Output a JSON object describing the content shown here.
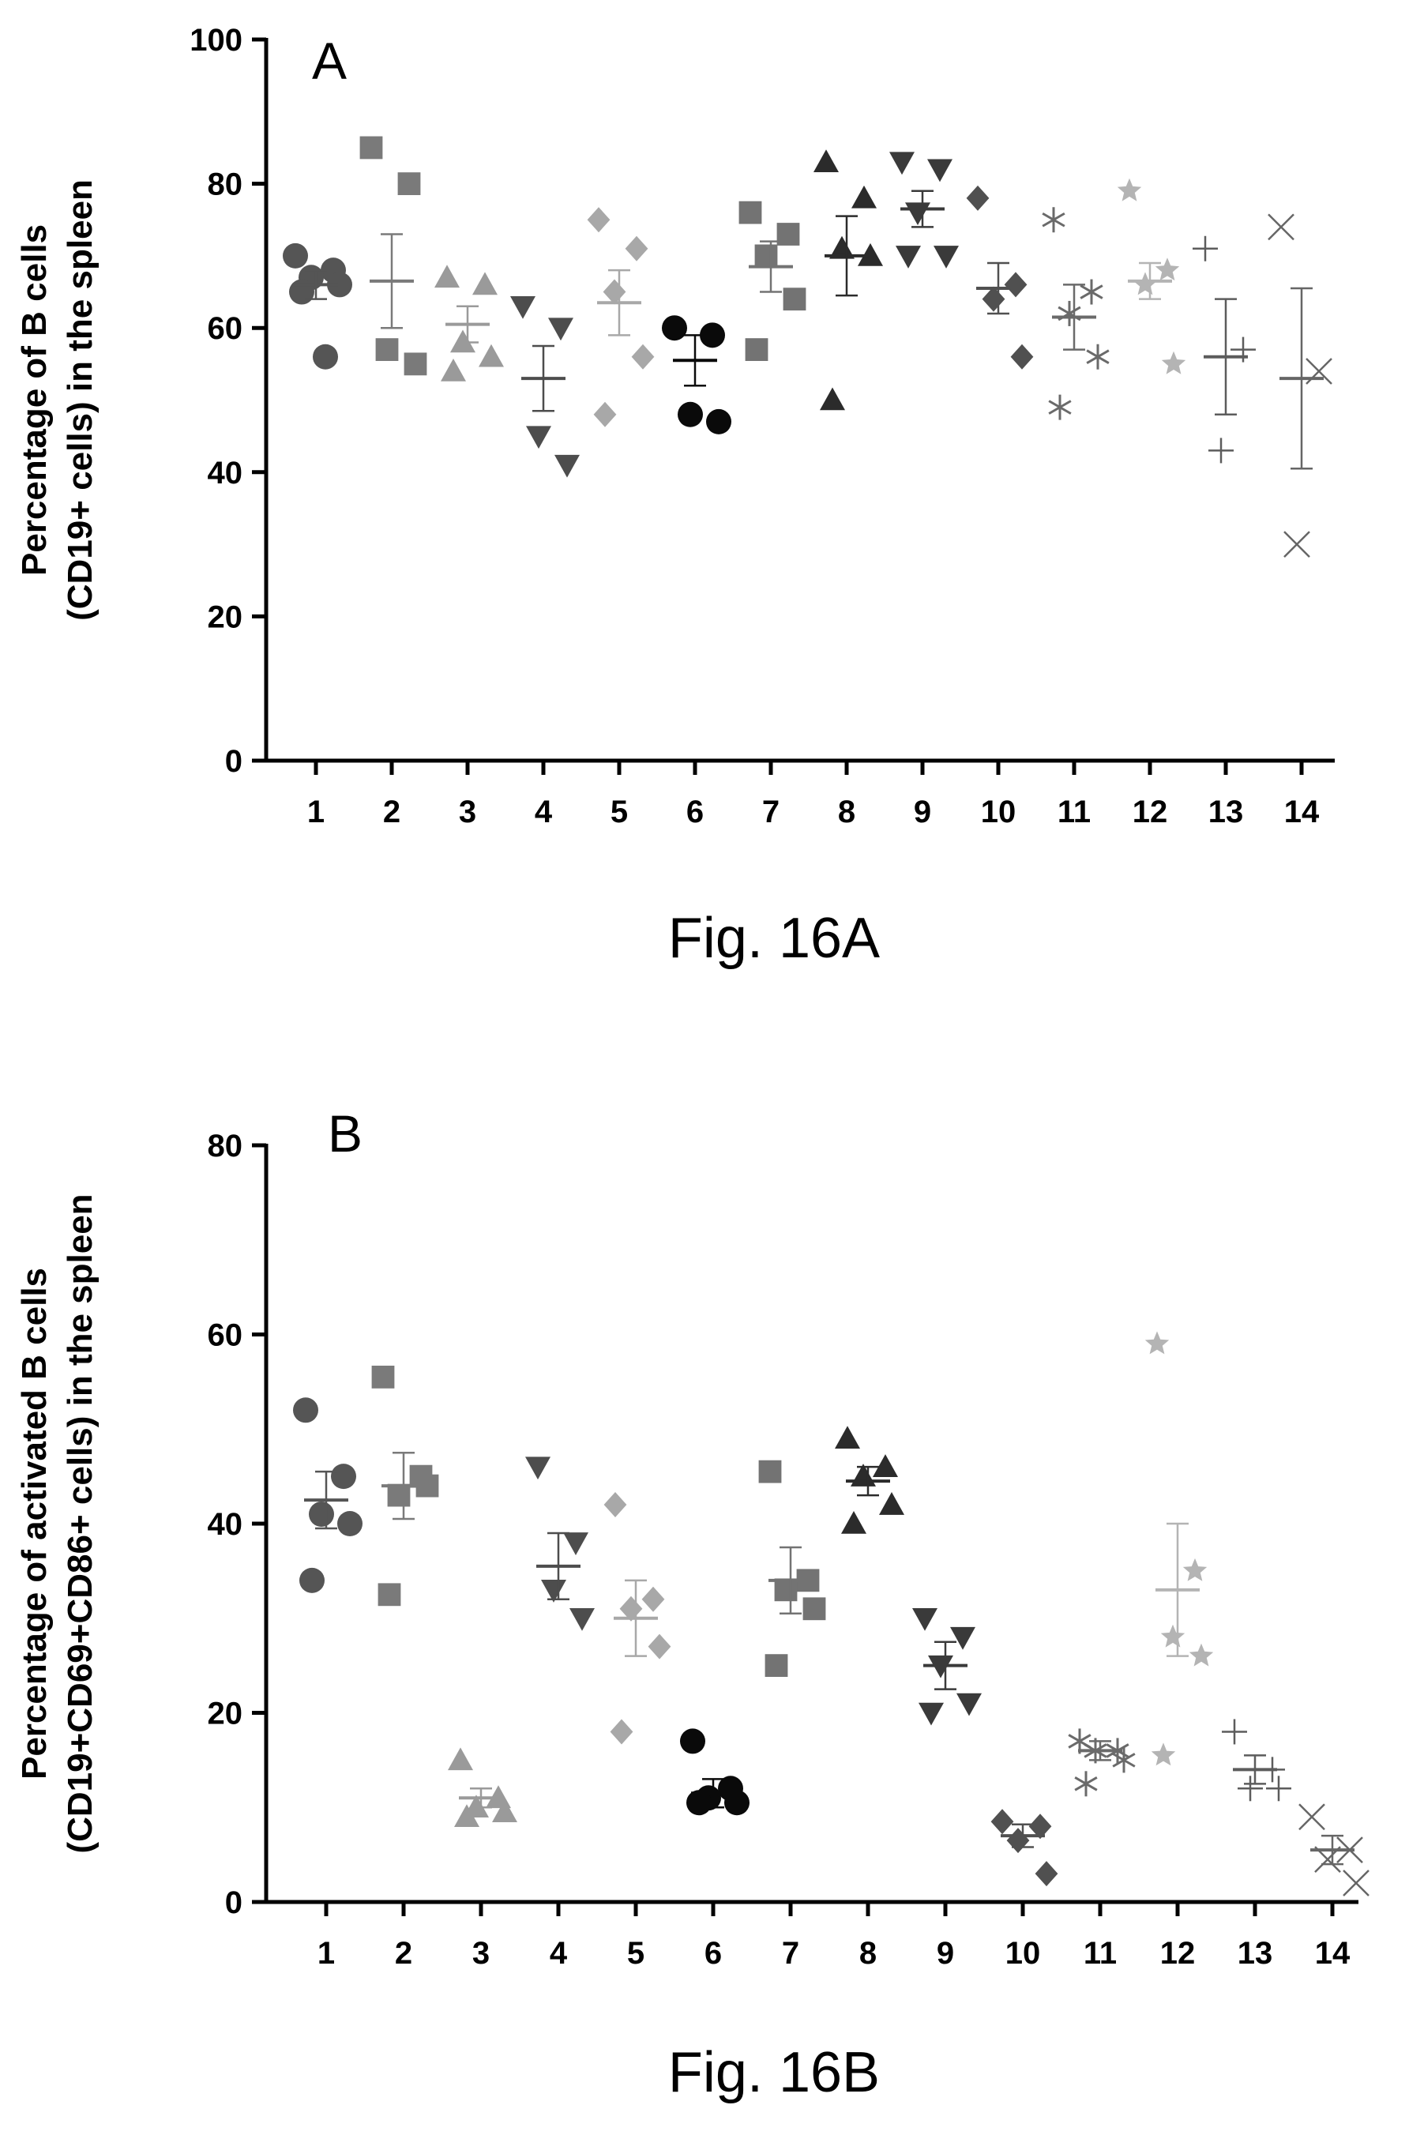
{
  "chart_data": [
    {
      "type": "scatter",
      "panel_label": "A",
      "caption": "Fig. 16A",
      "ylabel_lines": [
        "Percentage of B cells",
        "(CD19+ cells) in the spleen"
      ],
      "categories": [
        "1",
        "2",
        "3",
        "4",
        "5",
        "6",
        "7",
        "8",
        "9",
        "10",
        "11",
        "12",
        "13",
        "14"
      ],
      "ylim": [
        0,
        100
      ],
      "yticks": [
        "0",
        "20",
        "40",
        "60",
        "80",
        "100"
      ],
      "groups": [
        {
          "points": [
            70,
            68,
            67,
            66,
            65,
            56
          ],
          "mean": 66,
          "sem": 2
        },
        {
          "points": [
            85,
            80,
            57,
            55
          ],
          "mean": 66.5,
          "sem": 6.5
        },
        {
          "points": [
            67,
            66,
            58,
            56,
            54
          ],
          "mean": 60.5,
          "sem": 2.5
        },
        {
          "points": [
            63,
            60,
            45,
            41
          ],
          "mean": 53,
          "sem": 4.5
        },
        {
          "points": [
            75,
            71,
            65,
            56,
            48
          ],
          "mean": 63.5,
          "sem": 4.5
        },
        {
          "points": [
            60,
            59,
            48,
            47
          ],
          "mean": 55.5,
          "sem": 3.5
        },
        {
          "points": [
            76,
            73,
            70,
            64,
            57
          ],
          "mean": 68.5,
          "sem": 3.5
        },
        {
          "points": [
            83,
            78,
            71,
            70,
            50
          ],
          "mean": 70,
          "sem": 5.5
        },
        {
          "points": [
            83,
            82,
            76,
            70,
            70
          ],
          "mean": 76.5,
          "sem": 2.5
        },
        {
          "points": [
            78,
            66,
            64,
            56
          ],
          "mean": 65.5,
          "sem": 3.5
        },
        {
          "points": [
            75,
            65,
            62,
            56,
            49
          ],
          "mean": 61.5,
          "sem": 4.5
        },
        {
          "points": [
            79,
            68,
            66,
            55
          ],
          "mean": 66.5,
          "sem": 2.5
        },
        {
          "points": [
            71,
            57,
            43
          ],
          "mean": 56,
          "sem": 8
        },
        {
          "points": [
            74,
            54,
            30
          ],
          "mean": 53,
          "sem": 12.5
        }
      ]
    },
    {
      "type": "scatter",
      "panel_label": "B",
      "caption": "Fig. 16B",
      "ylabel_lines": [
        "Percentage of activated B cells",
        "(CD19+CD69+CD86+ cells) in the spleen"
      ],
      "categories": [
        "1",
        "2",
        "3",
        "4",
        "5",
        "6",
        "7",
        "8",
        "9",
        "10",
        "11",
        "12",
        "13",
        "14"
      ],
      "ylim": [
        0,
        80
      ],
      "yticks": [
        "0",
        "20",
        "40",
        "60",
        "80"
      ],
      "groups": [
        {
          "points": [
            52,
            45,
            41,
            40,
            34
          ],
          "mean": 42.5,
          "sem": 3
        },
        {
          "points": [
            55.5,
            45,
            43,
            44,
            32.5
          ],
          "mean": 44,
          "sem": 3.5
        },
        {
          "points": [
            15,
            11,
            10,
            9.5,
            9
          ],
          "mean": 11,
          "sem": 1
        },
        {
          "points": [
            46,
            38,
            33,
            30
          ],
          "mean": 35.5,
          "sem": 3.5
        },
        {
          "points": [
            42,
            32,
            31,
            27,
            18
          ],
          "mean": 30,
          "sem": 4
        },
        {
          "points": [
            17,
            12,
            11,
            10.5,
            10.5
          ],
          "mean": 11.5,
          "sem": 1.5
        },
        {
          "points": [
            45.5,
            34,
            33,
            31,
            25
          ],
          "mean": 34,
          "sem": 3.5
        },
        {
          "points": [
            49,
            46,
            45,
            42,
            40
          ],
          "mean": 44.5,
          "sem": 1.5
        },
        {
          "points": [
            30,
            28,
            25,
            21,
            20
          ],
          "mean": 25,
          "sem": 2.5
        },
        {
          "points": [
            8.5,
            8,
            6.5,
            3
          ],
          "mean": 7,
          "sem": 1.2
        },
        {
          "points": [
            17,
            16,
            16,
            15,
            12.5
          ],
          "mean": 16,
          "sem": 1
        },
        {
          "points": [
            59,
            35,
            28,
            26,
            15.5
          ],
          "mean": 33,
          "sem": 7
        },
        {
          "points": [
            18,
            14,
            12,
            12
          ],
          "mean": 14,
          "sem": 1.5
        },
        {
          "points": [
            9,
            5.5,
            4.5,
            2
          ],
          "mean": 5.5,
          "sem": 1.5
        }
      ]
    }
  ],
  "style": {
    "group_colors": [
      "#555555",
      "#7a7a7a",
      "#9a9a9a",
      "#4d4d4d",
      "#a8a8a8",
      "#0a0a0a",
      "#737373",
      "#2b2b2b",
      "#3a3a3a",
      "#505050",
      "#6a6a6a",
      "#b4b4b4",
      "#5c5c5c",
      "#666666"
    ],
    "group_markers": [
      "circle",
      "square",
      "triangle",
      "triangle-down",
      "diamond",
      "circle",
      "square",
      "triangle",
      "triangle-down",
      "diamond",
      "asterisk",
      "star",
      "plus",
      "cross"
    ]
  }
}
